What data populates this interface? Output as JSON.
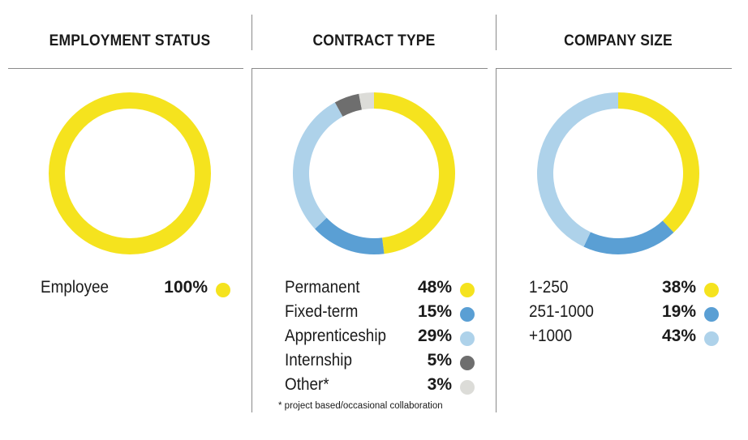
{
  "colors": {
    "yellow": "#f5e31e",
    "blue": "#5a9fd4",
    "light_blue": "#aed2ea",
    "dark_gray": "#6e6e6e",
    "light_gray": "#dcdcd8"
  },
  "chart_data": [
    {
      "type": "pie",
      "variant": "donut",
      "title": "EMPLOYMENT STATUS",
      "slices": [
        {
          "label": "Employee",
          "value": 100,
          "value_label": "100%",
          "color": "#f5e31e"
        }
      ]
    },
    {
      "type": "pie",
      "variant": "donut",
      "title": "CONTRACT TYPE",
      "slices": [
        {
          "label": "Permanent",
          "value": 48,
          "value_label": "48%",
          "color": "#f5e31e"
        },
        {
          "label": "Fixed-term",
          "value": 15,
          "value_label": "15%",
          "color": "#5a9fd4"
        },
        {
          "label": "Apprenticeship",
          "value": 29,
          "value_label": "29%",
          "color": "#aed2ea"
        },
        {
          "label": "Internship",
          "value": 5,
          "value_label": "5%",
          "color": "#6e6e6e"
        },
        {
          "label": "Other*",
          "value": 3,
          "value_label": "3%",
          "color": "#dcdcd8"
        }
      ],
      "footnote": "* project based/occasional collaboration"
    },
    {
      "type": "pie",
      "variant": "donut",
      "title": "COMPANY SIZE",
      "slices": [
        {
          "label": "1-250",
          "value": 38,
          "value_label": "38%",
          "color": "#f5e31e"
        },
        {
          "label": "251-1000",
          "value": 19,
          "value_label": "19%",
          "color": "#5a9fd4"
        },
        {
          "label": "+1000",
          "value": 43,
          "value_label": "43%",
          "color": "#aed2ea"
        }
      ]
    }
  ]
}
